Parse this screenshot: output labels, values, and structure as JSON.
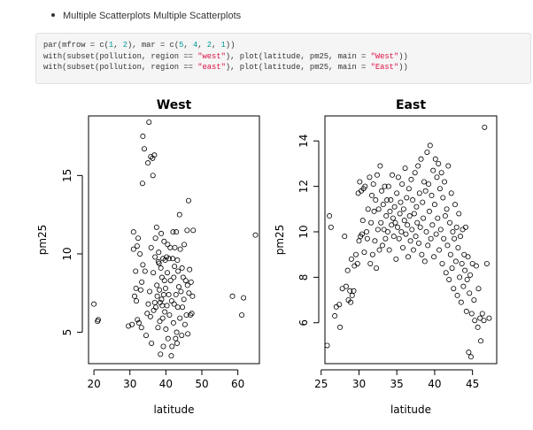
{
  "bullet_text": "Multiple Scatterplots Multiple Scatterplots",
  "code_lines": [
    [
      {
        "t": "par(mfrow = c("
      },
      {
        "t": "1",
        "c": "num"
      },
      {
        "t": ", "
      },
      {
        "t": "2",
        "c": "num"
      },
      {
        "t": "), mar = c("
      },
      {
        "t": "5",
        "c": "num"
      },
      {
        "t": ", "
      },
      {
        "t": "4",
        "c": "num"
      },
      {
        "t": ", "
      },
      {
        "t": "2",
        "c": "num"
      },
      {
        "t": ", "
      },
      {
        "t": "1",
        "c": "num"
      },
      {
        "t": "))"
      }
    ],
    [
      {
        "t": "with(subset(pollution, region == "
      },
      {
        "t": "\"west\"",
        "c": "str"
      },
      {
        "t": "), plot(latitude, pm25, main = "
      },
      {
        "t": "\"West\"",
        "c": "str"
      },
      {
        "t": "))"
      }
    ],
    [
      {
        "t": "with(subset(pollution, region == "
      },
      {
        "t": "\"east\"",
        "c": "str"
      },
      {
        "t": "), plot(latitude, pm25, main = "
      },
      {
        "t": "\"East\"",
        "c": "str"
      },
      {
        "t": "))"
      }
    ]
  ],
  "chart_data": [
    {
      "type": "scatter",
      "title": "West",
      "xlabel": "latitude",
      "ylabel": "pm25",
      "xlim": [
        18.5,
        66
      ],
      "ylim": [
        3.0,
        18.8
      ],
      "xticks": [
        20,
        30,
        40,
        50,
        60
      ],
      "yticks": [
        5,
        10,
        15
      ],
      "points": [
        [
          20.0,
          6.8
        ],
        [
          21.0,
          5.7
        ],
        [
          21.2,
          5.8
        ],
        [
          29.6,
          5.4
        ],
        [
          30.6,
          5.5
        ],
        [
          31.0,
          11.4
        ],
        [
          31.0,
          10.3
        ],
        [
          31.3,
          7.3
        ],
        [
          31.6,
          8.9
        ],
        [
          31.7,
          7.8
        ],
        [
          31.8,
          7.0
        ],
        [
          32.0,
          10.5
        ],
        [
          32.1,
          5.8
        ],
        [
          32.3,
          11.0
        ],
        [
          32.5,
          5.6
        ],
        [
          32.8,
          10.0
        ],
        [
          33.0,
          7.7
        ],
        [
          33.2,
          5.3
        ],
        [
          33.3,
          8.2
        ],
        [
          33.5,
          14.5
        ],
        [
          33.6,
          17.5
        ],
        [
          33.6,
          9.3
        ],
        [
          34.0,
          16.7
        ],
        [
          34.2,
          8.9
        ],
        [
          34.5,
          4.8
        ],
        [
          34.8,
          6.2
        ],
        [
          35.0,
          15.8
        ],
        [
          35.1,
          6.8
        ],
        [
          35.3,
          18.4
        ],
        [
          35.5,
          7.6
        ],
        [
          35.7,
          6.0
        ],
        [
          35.8,
          16.2
        ],
        [
          35.9,
          10.4
        ],
        [
          36.0,
          4.3
        ],
        [
          36.3,
          16.1
        ],
        [
          36.4,
          15.0
        ],
        [
          36.5,
          8.8
        ],
        [
          36.6,
          6.4
        ],
        [
          36.8,
          16.3
        ],
        [
          36.9,
          6.9
        ],
        [
          37.0,
          9.8
        ],
        [
          37.1,
          11.0
        ],
        [
          37.2,
          6.6
        ],
        [
          37.4,
          11.7
        ],
        [
          37.5,
          8.0
        ],
        [
          37.6,
          7.3
        ],
        [
          37.8,
          5.3
        ],
        [
          37.9,
          9.5
        ],
        [
          38.0,
          10.1
        ],
        [
          38.1,
          9.4
        ],
        [
          38.2,
          7.7
        ],
        [
          38.3,
          5.7
        ],
        [
          38.4,
          6.9
        ],
        [
          38.5,
          3.6
        ],
        [
          38.6,
          9.1
        ],
        [
          38.7,
          11.3
        ],
        [
          38.8,
          7.1
        ],
        [
          38.9,
          8.5
        ],
        [
          39.0,
          6.7
        ],
        [
          39.1,
          5.9
        ],
        [
          39.2,
          9.7
        ],
        [
          39.3,
          4.1
        ],
        [
          39.4,
          7.4
        ],
        [
          39.5,
          10.8
        ],
        [
          39.6,
          8.3
        ],
        [
          39.7,
          6.3
        ],
        [
          39.8,
          9.6
        ],
        [
          39.9,
          7.8
        ],
        [
          40.0,
          5.2
        ],
        [
          40.2,
          9.8
        ],
        [
          40.3,
          6.7
        ],
        [
          40.4,
          8.8
        ],
        [
          40.5,
          10.6
        ],
        [
          40.6,
          4.6
        ],
        [
          40.8,
          7.4
        ],
        [
          40.9,
          9.7
        ],
        [
          41.0,
          6.1
        ],
        [
          41.2,
          10.4
        ],
        [
          41.3,
          8.3
        ],
        [
          41.5,
          3.5
        ],
        [
          41.6,
          7.0
        ],
        [
          41.7,
          4.1
        ],
        [
          41.9,
          9.7
        ],
        [
          42.0,
          11.4
        ],
        [
          42.1,
          5.6
        ],
        [
          42.2,
          8.5
        ],
        [
          42.3,
          6.8
        ],
        [
          42.4,
          9.2
        ],
        [
          42.5,
          10.4
        ],
        [
          42.7,
          4.6
        ],
        [
          42.8,
          7.4
        ],
        [
          42.9,
          11.4
        ],
        [
          43.0,
          5.0
        ],
        [
          43.1,
          4.3
        ],
        [
          43.2,
          9.6
        ],
        [
          43.3,
          6.6
        ],
        [
          43.4,
          8.9
        ],
        [
          43.6,
          7.9
        ],
        [
          43.8,
          12.5
        ],
        [
          43.9,
          5.9
        ],
        [
          44.0,
          10.3
        ],
        [
          44.2,
          7.6
        ],
        [
          44.4,
          4.8
        ],
        [
          44.5,
          9.1
        ],
        [
          44.6,
          6.6
        ],
        [
          44.8,
          8.5
        ],
        [
          45.0,
          7.1
        ],
        [
          45.1,
          10.6
        ],
        [
          45.3,
          5.5
        ],
        [
          45.5,
          8.3
        ],
        [
          45.7,
          6.1
        ],
        [
          45.9,
          11.5
        ],
        [
          46.0,
          8.0
        ],
        [
          46.1,
          4.9
        ],
        [
          46.3,
          13.4
        ],
        [
          46.4,
          7.5
        ],
        [
          46.6,
          9.0
        ],
        [
          46.8,
          6.1
        ],
        [
          47.0,
          8.2
        ],
        [
          47.2,
          6.2
        ],
        [
          47.4,
          7.3
        ],
        [
          47.6,
          11.5
        ],
        [
          58.5,
          7.3
        ],
        [
          61.1,
          6.1
        ],
        [
          61.6,
          7.2
        ],
        [
          64.9,
          11.2
        ]
      ]
    },
    {
      "type": "scatter",
      "title": "East",
      "xlabel": "latitude",
      "ylabel": "pm25",
      "xlim": [
        25.5,
        48.2
      ],
      "ylim": [
        4.2,
        15.1
      ],
      "xticks": [
        25,
        30,
        35,
        40,
        45
      ],
      "yticks": [
        6,
        8,
        10,
        12,
        14
      ],
      "points": [
        [
          25.8,
          5.0
        ],
        [
          26.1,
          10.7
        ],
        [
          26.3,
          10.2
        ],
        [
          26.8,
          6.3
        ],
        [
          27.0,
          6.7
        ],
        [
          27.4,
          6.8
        ],
        [
          27.5,
          5.8
        ],
        [
          27.8,
          7.5
        ],
        [
          28.1,
          9.8
        ],
        [
          28.3,
          7.6
        ],
        [
          28.5,
          8.3
        ],
        [
          28.6,
          7.0
        ],
        [
          28.8,
          7.4
        ],
        [
          28.9,
          6.9
        ],
        [
          29.0,
          8.8
        ],
        [
          29.1,
          7.2
        ],
        [
          29.3,
          7.4
        ],
        [
          29.4,
          8.5
        ],
        [
          29.6,
          9.0
        ],
        [
          29.8,
          8.6
        ],
        [
          29.9,
          11.7
        ],
        [
          30.0,
          9.6
        ],
        [
          30.1,
          12.2
        ],
        [
          30.2,
          9.8
        ],
        [
          30.3,
          11.8
        ],
        [
          30.4,
          9.9
        ],
        [
          30.5,
          10.5
        ],
        [
          30.6,
          11.9
        ],
        [
          30.7,
          9.1
        ],
        [
          30.8,
          12.0
        ],
        [
          31.0,
          10.0
        ],
        [
          31.1,
          9.7
        ],
        [
          31.2,
          11.0
        ],
        [
          31.4,
          12.4
        ],
        [
          31.5,
          8.6
        ],
        [
          31.6,
          10.4
        ],
        [
          31.7,
          11.6
        ],
        [
          31.8,
          9.0
        ],
        [
          31.9,
          12.1
        ],
        [
          32.0,
          10.9
        ],
        [
          32.1,
          9.6
        ],
        [
          32.2,
          11.4
        ],
        [
          32.3,
          8.4
        ],
        [
          32.4,
          12.5
        ],
        [
          32.5,
          10.1
        ],
        [
          32.6,
          11.0
        ],
        [
          32.7,
          9.2
        ],
        [
          32.8,
          12.9
        ],
        [
          32.9,
          10.4
        ],
        [
          33.0,
          11.8
        ],
        [
          33.1,
          9.4
        ],
        [
          33.2,
          11.2
        ],
        [
          33.3,
          10.1
        ],
        [
          33.4,
          12.0
        ],
        [
          33.5,
          9.7
        ],
        [
          33.6,
          10.7
        ],
        [
          33.7,
          11.4
        ],
        [
          33.8,
          10.0
        ],
        [
          33.9,
          12.0
        ],
        [
          34.0,
          9.2
        ],
        [
          34.1,
          10.9
        ],
        [
          34.2,
          11.4
        ],
        [
          34.3,
          10.3
        ],
        [
          34.4,
          12.5
        ],
        [
          34.5,
          10.6
        ],
        [
          34.6,
          9.8
        ],
        [
          34.7,
          11.1
        ],
        [
          34.8,
          10.4
        ],
        [
          34.9,
          8.8
        ],
        [
          35.0,
          11.7
        ],
        [
          35.1,
          10.2
        ],
        [
          35.2,
          12.4
        ],
        [
          35.3,
          9.7
        ],
        [
          35.4,
          10.8
        ],
        [
          35.5,
          11.3
        ],
        [
          35.6,
          10.0
        ],
        [
          35.7,
          12.1
        ],
        [
          35.8,
          9.3
        ],
        [
          35.9,
          11.0
        ],
        [
          36.0,
          10.5
        ],
        [
          36.1,
          12.8
        ],
        [
          36.2,
          9.9
        ],
        [
          36.3,
          11.5
        ],
        [
          36.4,
          10.3
        ],
        [
          36.5,
          8.9
        ],
        [
          36.6,
          11.9
        ],
        [
          36.7,
          10.7
        ],
        [
          36.8,
          9.6
        ],
        [
          36.9,
          12.3
        ],
        [
          37.0,
          10.1
        ],
        [
          37.1,
          11.4
        ],
        [
          37.2,
          9.2
        ],
        [
          37.3,
          10.8
        ],
        [
          37.4,
          12.6
        ],
        [
          37.5,
          9.8
        ],
        [
          37.6,
          11.1
        ],
        [
          37.7,
          10.4
        ],
        [
          37.8,
          12.9
        ],
        [
          37.9,
          9.5
        ],
        [
          38.0,
          11.7
        ],
        [
          38.1,
          10.2
        ],
        [
          38.2,
          13.2
        ],
        [
          38.3,
          9.0
        ],
        [
          38.4,
          11.3
        ],
        [
          38.5,
          10.6
        ],
        [
          38.6,
          12.2
        ],
        [
          38.7,
          8.7
        ],
        [
          38.8,
          11.8
        ],
        [
          38.9,
          10.0
        ],
        [
          39.0,
          13.5
        ],
        [
          39.1,
          9.4
        ],
        [
          39.2,
          12.1
        ],
        [
          39.3,
          10.9
        ],
        [
          39.4,
          13.8
        ],
        [
          39.5,
          9.7
        ],
        [
          39.6,
          11.6
        ],
        [
          39.7,
          10.3
        ],
        [
          39.8,
          12.7
        ],
        [
          39.9,
          8.9
        ],
        [
          40.0,
          11.2
        ],
        [
          40.1,
          13.2
        ],
        [
          40.2,
          9.9
        ],
        [
          40.3,
          12.4
        ],
        [
          40.4,
          10.6
        ],
        [
          40.5,
          13.0
        ],
        [
          40.6,
          9.2
        ],
        [
          40.7,
          11.9
        ],
        [
          40.8,
          10.1
        ],
        [
          40.9,
          12.6
        ],
        [
          41.0,
          8.6
        ],
        [
          41.1,
          11.5
        ],
        [
          41.2,
          9.7
        ],
        [
          41.3,
          12.2
        ],
        [
          41.4,
          10.7
        ],
        [
          41.5,
          8.2
        ],
        [
          41.6,
          11.0
        ],
        [
          41.7,
          9.4
        ],
        [
          41.8,
          12.9
        ],
        [
          41.9,
          7.9
        ],
        [
          42.0,
          10.4
        ],
        [
          42.1,
          9.0
        ],
        [
          42.2,
          11.7
        ],
        [
          42.3,
          8.4
        ],
        [
          42.4,
          10.0
        ],
        [
          42.5,
          7.5
        ],
        [
          42.6,
          9.7
        ],
        [
          42.7,
          11.2
        ],
        [
          42.8,
          8.7
        ],
        [
          42.9,
          10.2
        ],
        [
          43.0,
          7.2
        ],
        [
          43.1,
          9.3
        ],
        [
          43.2,
          10.8
        ],
        [
          43.3,
          8.0
        ],
        [
          43.4,
          9.8
        ],
        [
          43.5,
          6.9
        ],
        [
          43.6,
          8.6
        ],
        [
          43.7,
          10.1
        ],
        [
          43.8,
          7.6
        ],
        [
          43.9,
          9.0
        ],
        [
          44.0,
          8.3
        ],
        [
          44.1,
          10.2
        ],
        [
          44.2,
          6.5
        ],
        [
          44.3,
          7.9
        ],
        [
          44.4,
          8.9
        ],
        [
          44.5,
          4.7
        ],
        [
          44.6,
          7.3
        ],
        [
          44.7,
          8.1
        ],
        [
          44.8,
          4.5
        ],
        [
          44.9,
          6.4
        ],
        [
          45.0,
          8.6
        ],
        [
          45.2,
          7.0
        ],
        [
          45.3,
          6.1
        ],
        [
          45.5,
          8.5
        ],
        [
          45.7,
          5.8
        ],
        [
          45.8,
          7.5
        ],
        [
          46.0,
          6.2
        ],
        [
          46.1,
          5.2
        ],
        [
          46.3,
          6.4
        ],
        [
          46.5,
          6.1
        ],
        [
          46.6,
          14.6
        ],
        [
          46.9,
          8.6
        ],
        [
          47.2,
          6.2
        ]
      ]
    }
  ]
}
